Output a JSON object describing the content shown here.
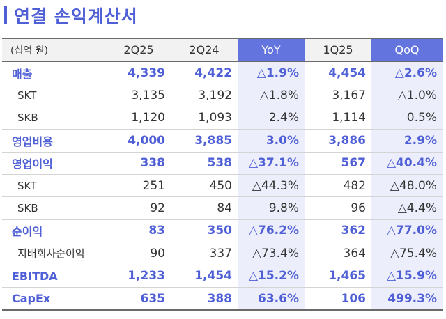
{
  "title": "연결 손익계산서",
  "table": {
    "unit": "(십억 원)",
    "headers": [
      "2Q25",
      "2Q24",
      "YoY",
      "1Q25",
      "QoQ"
    ],
    "rows": [
      {
        "label": "매출",
        "values": [
          "4,339",
          "4,422",
          "△1.9%",
          "4,454",
          "△2.6%"
        ],
        "style": "main"
      },
      {
        "label": "SKT",
        "values": [
          "3,135",
          "3,192",
          "△1.8%",
          "3,167",
          "△1.0%"
        ],
        "style": "sub"
      },
      {
        "label": "SKB",
        "values": [
          "1,120",
          "1,093",
          "2.4%",
          "1,114",
          "0.5%"
        ],
        "style": "sub"
      },
      {
        "label": "영업비용",
        "values": [
          "4,000",
          "3,885",
          "3.0%",
          "3,886",
          "2.9%"
        ],
        "style": "main"
      },
      {
        "label": "영업이익",
        "values": [
          "338",
          "538",
          "△37.1%",
          "567",
          "△40.4%"
        ],
        "style": "main"
      },
      {
        "label": "SKT",
        "values": [
          "251",
          "450",
          "△44.3%",
          "482",
          "△48.0%"
        ],
        "style": "sub"
      },
      {
        "label": "SKB",
        "values": [
          "92",
          "84",
          "9.8%",
          "96",
          "△4.4%"
        ],
        "style": "sub"
      },
      {
        "label": "순이익",
        "values": [
          "83",
          "350",
          "△76.2%",
          "362",
          "△77.0%"
        ],
        "style": "main"
      },
      {
        "label": "지배회사순이익",
        "values": [
          "90",
          "337",
          "△73.4%",
          "364",
          "△75.4%"
        ],
        "style": "sub"
      },
      {
        "label": "EBITDA",
        "values": [
          "1,233",
          "1,454",
          "△15.2%",
          "1,465",
          "△15.9%"
        ],
        "style": "main"
      },
      {
        "label": "CapEx",
        "values": [
          "635",
          "388",
          "63.6%",
          "106",
          "499.3%"
        ],
        "style": "main"
      }
    ]
  },
  "colors": {
    "accent": "#4f5fd6",
    "header_highlight": "#6474de",
    "column_highlight": "#eceefb"
  }
}
